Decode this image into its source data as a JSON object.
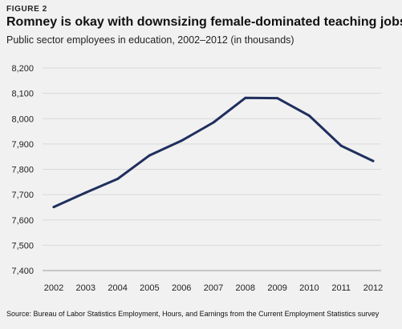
{
  "figure": {
    "label": "FIGURE 2",
    "title": "Romney is okay with downsizing female-dominated teaching jobs",
    "subtitle": "Public sector employees in education, 2002–2012 (in thousands)",
    "source": "Source: Bureau of Labor Statistics Employment, Hours, and Earnings from the Current Employment Statistics survey"
  },
  "chart_data": {
    "type": "line",
    "title": "Romney is okay with downsizing female-dominated teaching jobs",
    "subtitle": "Public sector employees in education, 2002–2012 (in thousands)",
    "xlabel": "",
    "ylabel": "",
    "x": [
      "2002",
      "2003",
      "2004",
      "2005",
      "2006",
      "2007",
      "2008",
      "2009",
      "2010",
      "2011",
      "2012"
    ],
    "y_tick_labels": [
      "7,400",
      "7,500",
      "7,600",
      "7,700",
      "7,800",
      "7,900",
      "8,000",
      "8,100",
      "8,200"
    ],
    "ylim": [
      7400,
      8200
    ],
    "series": [
      {
        "values": [
          7651,
          7708,
          7762,
          7855,
          7913,
          7985,
          8082,
          8081,
          8012,
          7893,
          7833
        ],
        "color": "#1f2f5e"
      }
    ],
    "grid": true,
    "legend": "none"
  }
}
